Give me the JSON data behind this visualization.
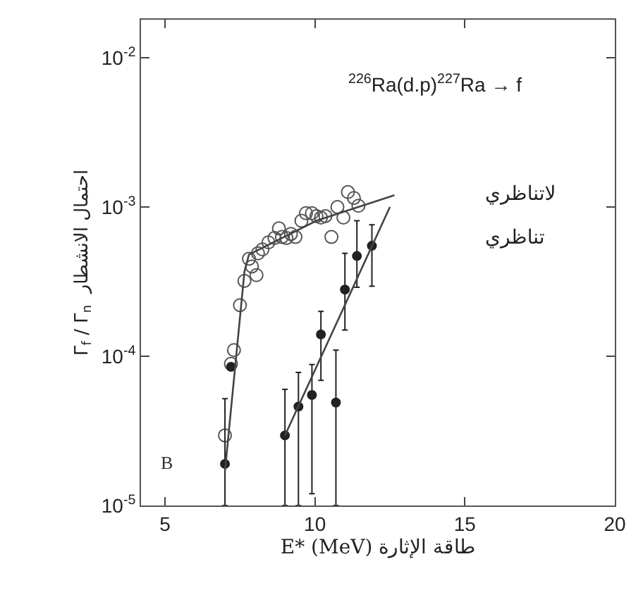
{
  "chart_data": {
    "type": "scatter",
    "title": "$^{226}$Ra(d.p)$^{227}$Ra → f",
    "xlabel": "E* (MeV) طاقة الإثارة",
    "ylabel": "Γ$_{f}$ / Γ$_{n}$  احتمال الانشطار",
    "log": "y",
    "xlim": [
      4.2,
      20
    ],
    "xticks": [
      5,
      10,
      15,
      20
    ],
    "ylim": [
      1e-05,
      0.018
    ],
    "yticks": [
      {
        "value": 1e-05,
        "label": "10$^{-5}$"
      },
      {
        "value": 0.0001,
        "label": "10$^{-4}$"
      },
      {
        "value": 0.001,
        "label": "10$^{-3}$"
      },
      {
        "value": 0.01,
        "label": "10$^{-2}$"
      }
    ],
    "series": [
      {
        "name": "لاتناظري",
        "color": "#555555",
        "marker": "circle-open",
        "x": [
          7.0,
          7.2,
          7.3,
          7.5,
          7.65,
          7.8,
          7.9,
          8.05,
          8.1,
          8.25,
          8.45,
          8.65,
          8.8,
          8.9,
          9.05,
          9.2,
          9.35,
          9.55,
          9.7,
          9.9,
          10.05,
          10.2,
          10.35,
          10.55,
          10.75,
          10.95,
          11.1,
          11.3,
          11.45
        ],
        "values": [
          2.95e-05,
          8.9e-05,
          0.00011,
          0.00022,
          0.00032,
          0.00045,
          0.0004,
          0.00035,
          0.00049,
          0.00052,
          0.00058,
          0.00062,
          0.00072,
          0.00063,
          0.00062,
          0.00066,
          0.00063,
          0.00081,
          0.00091,
          0.00091,
          0.00087,
          0.00085,
          0.00087,
          0.00063,
          0.001,
          0.00085,
          0.00126,
          0.00115,
          0.00102
        ]
      },
      {
        "name": "تناظري",
        "color": "#222222",
        "marker": "circle",
        "x": [
          7.0,
          7.2,
          9.0,
          9.45,
          9.9,
          10.2,
          10.7,
          11.0,
          11.4,
          11.9
        ],
        "values": [
          1.9e-05,
          8.5e-05,
          2.95e-05,
          4.6e-05,
          5.5e-05,
          0.00014,
          4.9e-05,
          0.00028,
          0.00047,
          0.00055
        ],
        "errors": [
          [
            1e-05,
            5.2e-05
          ],
          null,
          [
            1e-05,
            6e-05
          ],
          [
            1e-05,
            7.8e-05
          ],
          [
            1.2e-05,
            8.8e-05
          ],
          [
            6.9e-05,
            0.0002
          ],
          [
            1e-05,
            0.00011
          ],
          [
            0.00015,
            0.00049
          ],
          [
            0.00029,
            0.00081
          ],
          [
            0.000295,
            0.00076
          ]
        ]
      },
      {
        "type": "line",
        "color": "#444444",
        "x": [
          7.0,
          7.65,
          7.8,
          10.05,
          12.65
        ],
        "values": [
          1.7e-05,
          0.00037,
          0.00048,
          0.00081,
          0.0012
        ]
      },
      {
        "type": "line",
        "color": "#444444",
        "x": [
          9.0,
          12.5
        ],
        "values": [
          2.95e-05,
          0.001
        ]
      }
    ],
    "annotations": [
      "B"
    ]
  }
}
